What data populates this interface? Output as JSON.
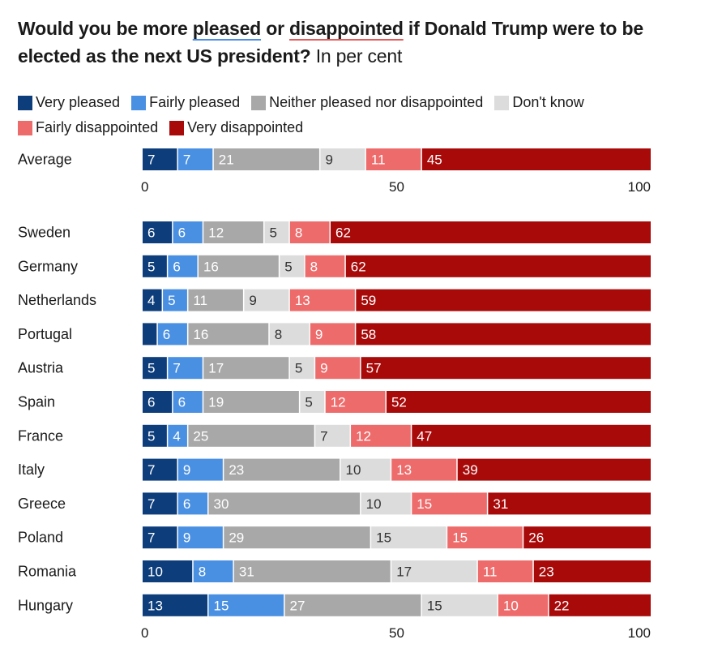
{
  "title": {
    "part1": "Would you be more ",
    "pleased": "pleased",
    "part2": " or ",
    "disappointed": "disappointed",
    "part3": " if Donald Trump were to be elected as the next US president?",
    "subtitle": " In per cent"
  },
  "colors": {
    "very_pleased": "#0d3d7a",
    "fairly_pleased": "#4a90e2",
    "neither": "#a8a8a8",
    "dont_know": "#dcdcdc",
    "fairly_disappointed": "#ee6b6b",
    "very_disappointed": "#a80a0a"
  },
  "chart_data": {
    "type": "bar",
    "orientation": "horizontal",
    "stacked": true,
    "xlim": [
      0,
      100
    ],
    "x_ticks": [
      "0",
      "50",
      "100"
    ],
    "series": [
      {
        "key": "very_pleased",
        "name": "Very pleased"
      },
      {
        "key": "fairly_pleased",
        "name": "Fairly pleased"
      },
      {
        "key": "neither",
        "name": "Neither pleased nor disappointed"
      },
      {
        "key": "dont_know",
        "name": "Don't know"
      },
      {
        "key": "fairly_disappointed",
        "name": "Fairly disappointed"
      },
      {
        "key": "very_disappointed",
        "name": "Very disappointed"
      }
    ],
    "average": {
      "label": "Average",
      "values": [
        7,
        7,
        21,
        9,
        11,
        45
      ]
    },
    "countries": [
      {
        "label": "Sweden",
        "values": [
          6,
          6,
          12,
          5,
          8,
          62
        ]
      },
      {
        "label": "Germany",
        "values": [
          5,
          6,
          16,
          5,
          8,
          62
        ]
      },
      {
        "label": "Netherlands",
        "values": [
          4,
          5,
          11,
          9,
          13,
          59
        ]
      },
      {
        "label": "Portugal",
        "values": [
          3,
          6,
          16,
          8,
          9,
          58
        ]
      },
      {
        "label": "Austria",
        "values": [
          5,
          7,
          17,
          5,
          9,
          57
        ]
      },
      {
        "label": "Spain",
        "values": [
          6,
          6,
          19,
          5,
          12,
          52
        ]
      },
      {
        "label": "France",
        "values": [
          5,
          4,
          25,
          7,
          12,
          47
        ]
      },
      {
        "label": "Italy",
        "values": [
          7,
          9,
          23,
          10,
          13,
          39
        ]
      },
      {
        "label": "Greece",
        "values": [
          7,
          6,
          30,
          10,
          15,
          31
        ]
      },
      {
        "label": "Poland",
        "values": [
          7,
          9,
          29,
          15,
          15,
          26
        ]
      },
      {
        "label": "Romania",
        "values": [
          10,
          8,
          31,
          17,
          11,
          23
        ]
      },
      {
        "label": "Hungary",
        "values": [
          13,
          15,
          27,
          15,
          10,
          22
        ]
      }
    ]
  }
}
